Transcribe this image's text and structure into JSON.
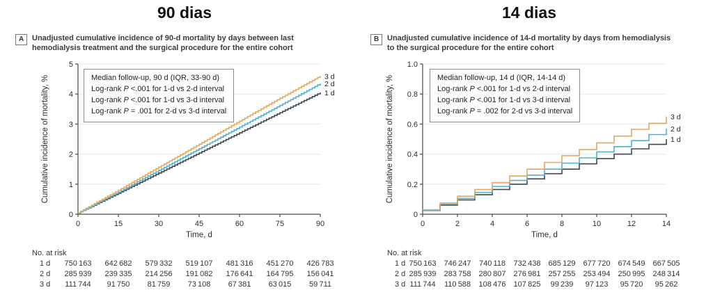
{
  "figure": {
    "left_title": "90 dias",
    "right_title": "14 dias"
  },
  "panels": [
    {
      "label": "A",
      "title": "90 dias",
      "caption": "Unadjusted cumulative incidence of 90-d mortality by days between last hemodialysis treatment and the surgical procedure for the entire cohort"
    },
    {
      "label": "B",
      "title": "14 dias",
      "caption": "Unadjusted cumulative incidence of 14-d mortality by days from hemodialysis to the surgical procedure for the entire cohort"
    }
  ],
  "chart_data": [
    {
      "type": "line",
      "panel": "A",
      "title": "90 dias",
      "xlabel": "Time, d",
      "ylabel": "Cumulative incidence of mortality, %",
      "xlim": [
        0,
        90
      ],
      "ylim": [
        0,
        5
      ],
      "xticks": [
        0,
        15,
        30,
        45,
        60,
        75,
        90
      ],
      "ytick_values": [
        0,
        1,
        2,
        3,
        4,
        5
      ],
      "ytick_labels": [
        "0",
        "1",
        "2",
        "3",
        "4",
        "5"
      ],
      "grid": "horizontal",
      "legend_lines": [
        "Median follow-up, 90 d (IQR, 33-90 d)",
        "Log-rank P <.001 for 1-d vs 2-d interval",
        "Log-rank P <.001 for 1-d vs 3-d interval",
        "Log-rank P = .001 for 2-d vs 3-d interval"
      ],
      "x": [
        0,
        15,
        30,
        45,
        60,
        75,
        90
      ],
      "series": [
        {
          "name": "3 d",
          "color": "#E3A85B",
          "values": [
            0.05,
            0.8,
            1.57,
            2.33,
            3.1,
            3.86,
            4.6
          ]
        },
        {
          "name": "2 d",
          "color": "#52B0CF",
          "values": [
            0.04,
            0.74,
            1.46,
            2.18,
            2.9,
            3.62,
            4.35
          ]
        },
        {
          "name": "1 d",
          "color": "#3B4650",
          "values": [
            0.04,
            0.7,
            1.37,
            2.04,
            2.71,
            3.38,
            4.05
          ]
        }
      ],
      "risk_table": {
        "label": "No. at risk",
        "rows": [
          {
            "name": "1 d",
            "values": [
              "750 163",
              "642 682",
              "579 332",
              "519 107",
              "481 316",
              "451 270",
              "426 783"
            ]
          },
          {
            "name": "2 d",
            "values": [
              "285 939",
              "239 335",
              "214 256",
              "191 082",
              "176 641",
              "164 795",
              "156 041"
            ]
          },
          {
            "name": "3 d",
            "values": [
              "111 744",
              "91 750",
              "81 759",
              "73 108",
              "67 381",
              "63 015",
              "59 711"
            ]
          }
        ]
      }
    },
    {
      "type": "line",
      "panel": "B",
      "title": "14 dias",
      "xlabel": "Time, d",
      "ylabel": "Cumulative incidence of mortality, %",
      "xlim": [
        0,
        14
      ],
      "ylim": [
        0,
        1.0
      ],
      "xticks": [
        0,
        2,
        4,
        6,
        8,
        10,
        12,
        14
      ],
      "ytick_values": [
        0,
        0.2,
        0.4,
        0.6,
        0.8,
        1.0
      ],
      "ytick_labels": [
        "0",
        "0.2",
        "0.4",
        "0.6",
        "0.8",
        "1.0"
      ],
      "grid": "horizontal",
      "legend_lines": [
        "Median follow-up, 14 d (IQR, 14-14 d)",
        "Log-rank P <.001 for 1-d vs 2-d interval",
        "Log-rank P <.001 for 1-d vs 3-d interval",
        "Log-rank P = .002 for 2-d vs 3-d interval"
      ],
      "x": [
        0,
        1,
        2,
        3,
        4,
        5,
        6,
        7,
        8,
        9,
        10,
        11,
        12,
        13,
        14
      ],
      "series": [
        {
          "name": "3 d",
          "color": "#E3A85B",
          "values": [
            0.03,
            0.075,
            0.12,
            0.165,
            0.21,
            0.255,
            0.3,
            0.345,
            0.39,
            0.43,
            0.475,
            0.52,
            0.565,
            0.605,
            0.65
          ]
        },
        {
          "name": "2 d",
          "color": "#52B0CF",
          "values": [
            0.027,
            0.066,
            0.105,
            0.145,
            0.185,
            0.225,
            0.26,
            0.3,
            0.34,
            0.375,
            0.415,
            0.45,
            0.49,
            0.53,
            0.57
          ]
        },
        {
          "name": "1 d",
          "color": "#3B4650",
          "values": [
            0.025,
            0.06,
            0.095,
            0.13,
            0.165,
            0.2,
            0.235,
            0.27,
            0.3,
            0.335,
            0.37,
            0.4,
            0.435,
            0.465,
            0.5
          ]
        }
      ],
      "risk_table": {
        "label": "No. at risk",
        "rows": [
          {
            "name": "1 d",
            "values": [
              "750 163",
              "746 247",
              "740 118",
              "732 438",
              "685 129",
              "677 720",
              "674 549",
              "667 505"
            ]
          },
          {
            "name": "2 d",
            "values": [
              "285 939",
              "283 758",
              "280 807",
              "276 981",
              "257 255",
              "253 494",
              "250 995",
              "248 314"
            ]
          },
          {
            "name": "3 d",
            "values": [
              "111 744",
              "110 588",
              "108 476",
              "107 825",
              "99 239",
              "97 123",
              "95 720",
              "95 262"
            ]
          }
        ]
      }
    }
  ]
}
